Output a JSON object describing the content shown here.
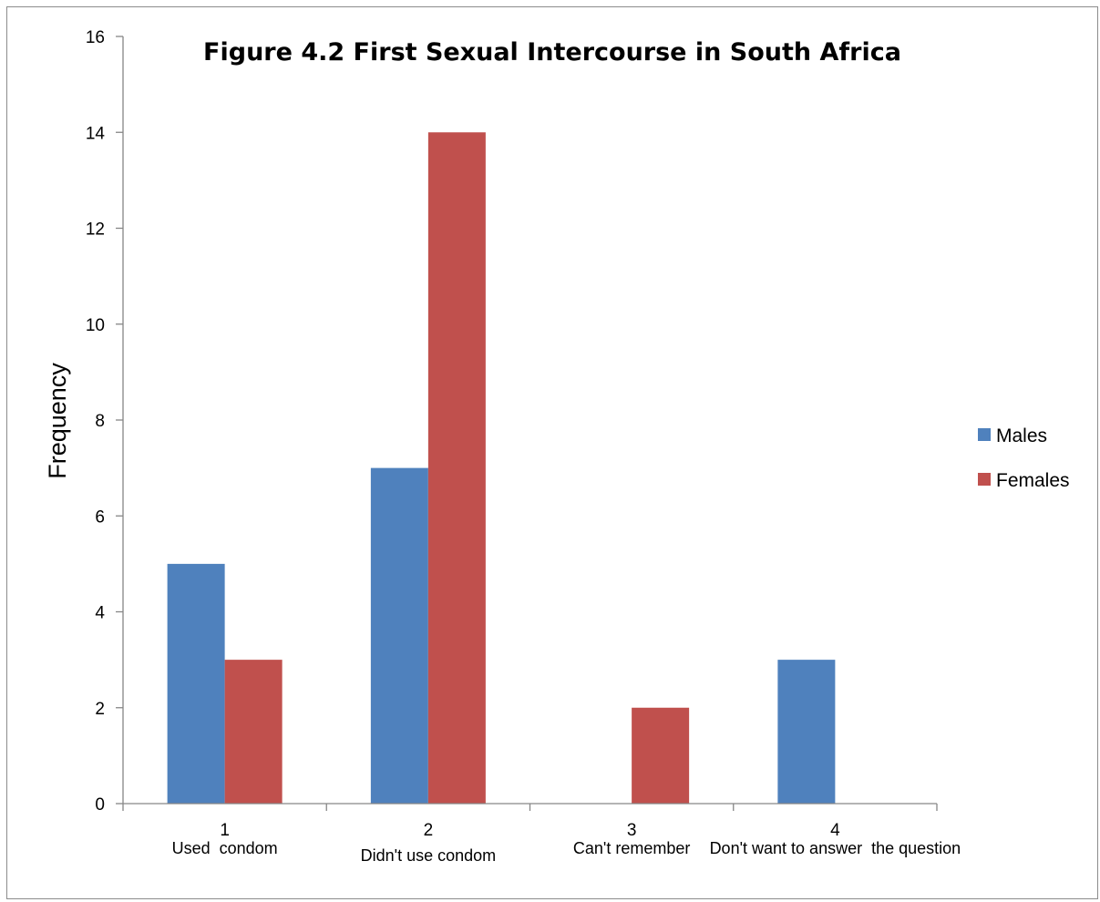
{
  "chart_data": {
    "type": "bar",
    "title": "Figure 4.2 First Sexual Intercourse in South Africa",
    "xlabel": "",
    "ylabel": "Frequency",
    "ylim": [
      0,
      16
    ],
    "yticks": [
      0,
      2,
      4,
      6,
      8,
      10,
      12,
      14,
      16
    ],
    "categories": [
      "1",
      "2",
      "3",
      "4"
    ],
    "category_descriptions": [
      "Used  condom",
      "Didn't use condom",
      "Can't remember",
      "Don't want to answer  the question"
    ],
    "series": [
      {
        "name": "Males",
        "values": [
          5,
          7,
          0,
          3
        ],
        "color": "#4f81bd"
      },
      {
        "name": "Females",
        "values": [
          3,
          14,
          2,
          0
        ],
        "color": "#c0504d"
      }
    ],
    "legend_position": "right",
    "grid": false
  }
}
